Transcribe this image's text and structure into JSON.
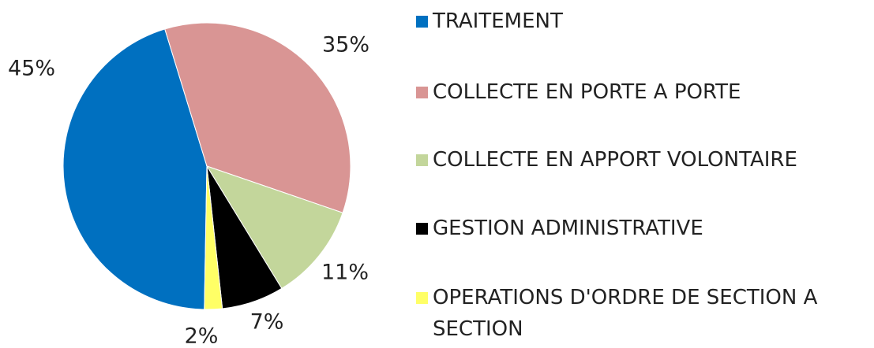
{
  "chart_data": {
    "type": "pie",
    "categories": [
      "TRAITEMENT",
      "COLLECTE EN PORTE A PORTE",
      "COLLECTE EN APPORT VOLONTAIRE",
      "GESTION ADMINISTRATIVE",
      "OPERATIONS D'ORDRE DE SECTION A SECTION"
    ],
    "values": [
      45,
      35,
      11,
      7,
      2
    ],
    "value_labels": [
      "45%",
      "35%",
      "11%",
      "7%",
      "2%"
    ],
    "colors": [
      "#0070c0",
      "#d99594",
      "#c3d69b",
      "#000000",
      "#ffff66"
    ],
    "legend": "right"
  }
}
